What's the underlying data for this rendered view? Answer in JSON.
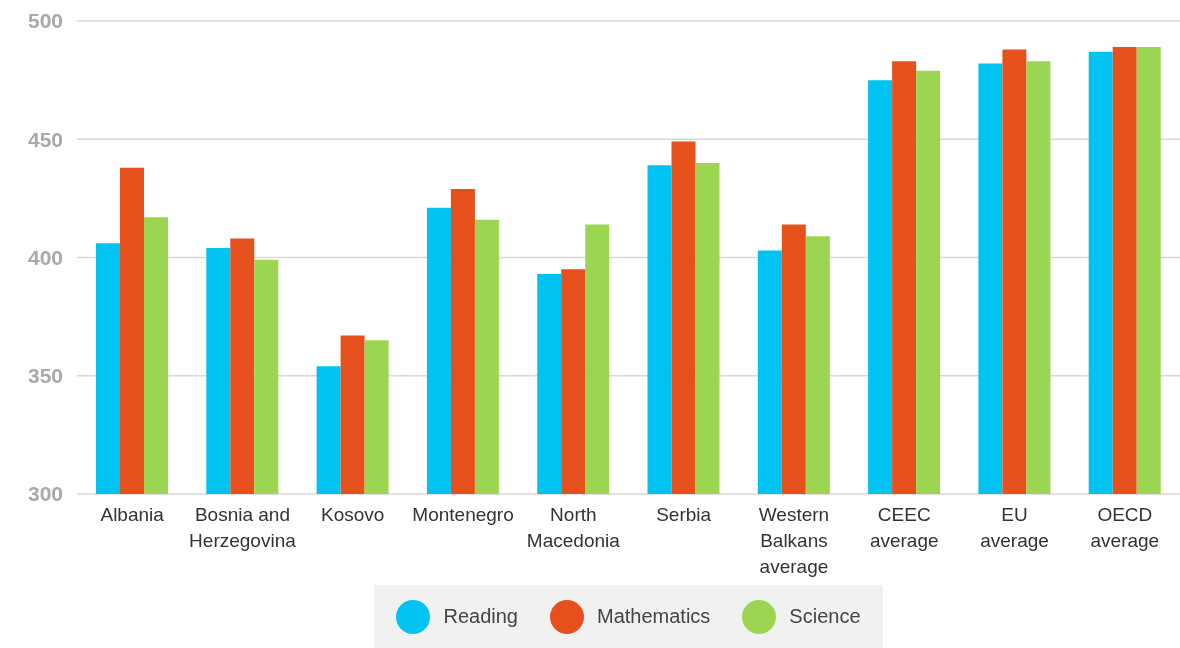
{
  "chart_data": {
    "type": "bar",
    "categories": [
      "Albania",
      "Bosnia and\nHerzegovina",
      "Kosovo",
      "Montenegro",
      "North\nMacedonia",
      "Serbia",
      "Western\nBalkans\naverage",
      "CEEC\naverage",
      "EU\naverage",
      "OECD\naverage"
    ],
    "series": [
      {
        "name": "Reading",
        "color": "#00c3f2",
        "values": [
          406,
          404,
          354,
          421,
          393,
          439,
          403,
          475,
          482,
          487
        ]
      },
      {
        "name": "Mathematics",
        "color": "#e5501c",
        "values": [
          438,
          408,
          367,
          429,
          395,
          449,
          414,
          483,
          488,
          489
        ]
      },
      {
        "name": "Science",
        "color": "#9bd552",
        "values": [
          417,
          399,
          365,
          416,
          414,
          440,
          409,
          479,
          483,
          489
        ]
      }
    ],
    "ylim": [
      300,
      500
    ],
    "yticks": [
      300,
      350,
      400,
      450,
      500
    ],
    "grid": "y",
    "legend": "bottom"
  }
}
